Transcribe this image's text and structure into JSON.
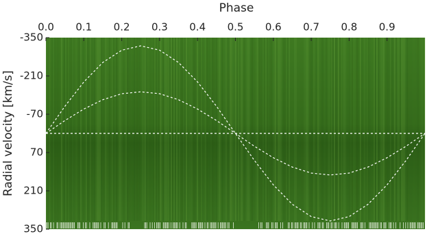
{
  "chart_data": {
    "type": "line",
    "x_label": "Phase",
    "y_label": "Radial velocity [km/s]",
    "xlim": [
      0,
      1
    ],
    "ylim": [
      -350,
      350
    ],
    "xticks": [
      {
        "value": 0,
        "label": "0.0"
      },
      0.1,
      0.2,
      0.3,
      0.4,
      0.5,
      0.6,
      0.7,
      0.8,
      0.9
    ],
    "yticks": [
      -350,
      -210,
      -70,
      70,
      210,
      350
    ],
    "y_inverted": true,
    "x_axis_position": "top",
    "series": [
      {
        "x": [
          0,
          0.05,
          0.1,
          0.15,
          0.2,
          0.25,
          0.3,
          0.35,
          0.4,
          0.45,
          0.5,
          0.55,
          0.6,
          0.65,
          0.7,
          0.75,
          0.8,
          0.85,
          0.9,
          0.95,
          1
        ],
        "values": [
          0,
          -99,
          -188,
          -259,
          -304,
          -320,
          -304,
          -259,
          -188,
          -99,
          0,
          99,
          188,
          259,
          304,
          320,
          304,
          259,
          188,
          99,
          0
        ],
        "color": "#ffffff"
      },
      {
        "x": [
          0,
          0.05,
          0.1,
          0.15,
          0.2,
          0.25,
          0.3,
          0.35,
          0.4,
          0.45,
          0.5,
          0.55,
          0.6,
          0.65,
          0.7,
          0.75,
          0.8,
          0.85,
          0.9,
          0.95,
          1
        ],
        "values": [
          0,
          -47,
          -89,
          -123,
          -145,
          -152,
          -145,
          -123,
          -89,
          -47,
          0,
          47,
          89,
          123,
          145,
          152,
          145,
          123,
          89,
          47,
          0
        ],
        "color": "#ffffff"
      },
      {
        "x": [
          0,
          1
        ],
        "values": [
          0,
          0
        ],
        "color": "#ffffff"
      }
    ]
  }
}
